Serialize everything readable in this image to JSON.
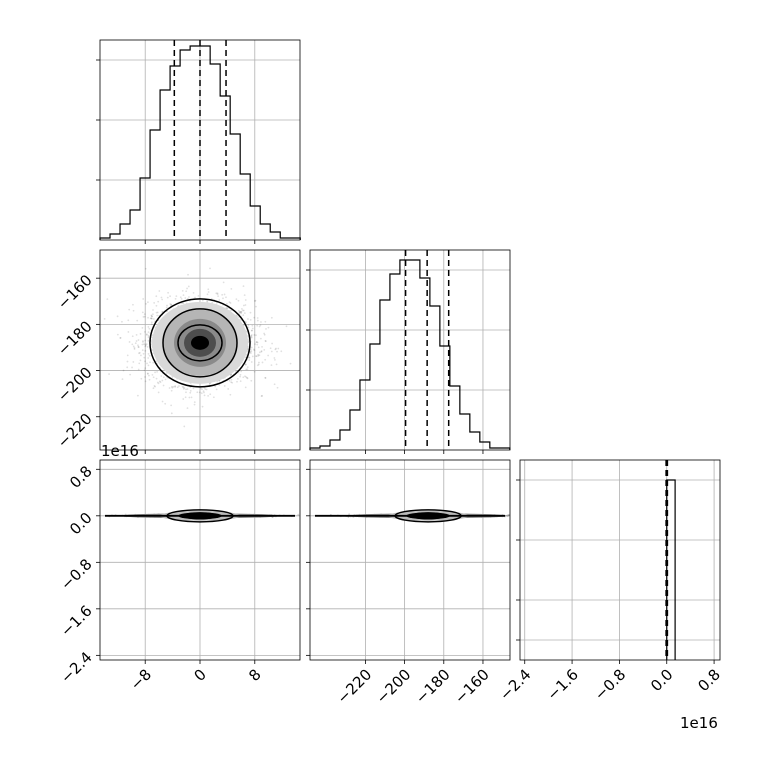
{
  "chart_data": {
    "type": "corner",
    "grid": true,
    "panels": [
      {
        "id": "p00",
        "type": "histogram",
        "x_range": [
          -14.6,
          14.6
        ],
        "bins_x": [
          -14.6,
          -13.138,
          -11.676,
          -10.214,
          -8.752,
          -7.29,
          -5.828,
          -4.366,
          -2.904,
          -1.442,
          0.02,
          1.482,
          2.944,
          4.406,
          5.868,
          7.33,
          8.792,
          10.254,
          11.716,
          13.178,
          14.64
        ],
        "counts": [
          0.01,
          0.03,
          0.08,
          0.15,
          0.31,
          0.55,
          0.75,
          0.87,
          0.95,
          0.97,
          0.97,
          0.88,
          0.72,
          0.53,
          0.33,
          0.17,
          0.08,
          0.04,
          0.01,
          0.01
        ],
        "quantile_lines": [
          -3.75,
          0.0,
          3.8
        ]
      },
      {
        "id": "p11",
        "type": "histogram",
        "x_range": [
          -248.3,
          -146.2
        ],
        "bins_x": [
          -248.3,
          -243.2,
          -238.1,
          -233.0,
          -227.9,
          -222.8,
          -217.7,
          -212.6,
          -207.5,
          -202.4,
          -197.3,
          -192.2,
          -187.1,
          -182.0,
          -176.9,
          -171.8,
          -166.7,
          -161.6,
          -156.5,
          -151.4,
          -146.3
        ],
        "counts": [
          0.01,
          0.02,
          0.05,
          0.1,
          0.2,
          0.35,
          0.53,
          0.75,
          0.88,
          0.95,
          0.95,
          0.86,
          0.72,
          0.52,
          0.32,
          0.18,
          0.09,
          0.04,
          0.01,
          0.01
        ],
        "quantile_lines": [
          -199.5,
          -188.5,
          -177.5
        ]
      },
      {
        "id": "p22",
        "type": "histogram",
        "x_range": [
          -2.48,
          0.9
        ],
        "x_offset_text": "1e16",
        "bins_x": [
          0.0,
          0.04
        ],
        "counts": [
          1.0
        ],
        "quantile_lines": [
          -0.005,
          0.0,
          0.005
        ]
      },
      {
        "id": "p10",
        "type": "contour",
        "x_range": [
          -14.6,
          14.6
        ],
        "y_range": [
          -234.4,
          -147.8
        ],
        "center": [
          0,
          -188
        ],
        "sigma_rx": 7.5,
        "sigma_ry": 16,
        "contour_levels": [
          0.5,
          1.0,
          1.5
        ]
      },
      {
        "id": "p20",
        "type": "contour",
        "x_range": [
          -14.6,
          14.6
        ],
        "y_range": [
          -2.48,
          0.96
        ],
        "y_offset_text": "1e16",
        "center": [
          0,
          0
        ],
        "sigma_rx": 7.5,
        "sigma_ry": 0.06
      },
      {
        "id": "p21",
        "type": "contour",
        "x_range": [
          -248.3,
          -146.2
        ],
        "y_range": [
          -2.48,
          0.96
        ],
        "center": [
          -188,
          0
        ],
        "sigma_rx": 16,
        "sigma_ry": 0.06
      }
    ],
    "tick_labels": {
      "p10_y": [
        "−160",
        "−180",
        "−200",
        "−220"
      ],
      "p10_y_values": [
        -160,
        -180,
        -200,
        -220
      ],
      "p20_y": [
        "0.8",
        "0.0",
        "−0.8",
        "−1.6",
        "−2.4"
      ],
      "p20_y_values": [
        0.8,
        0.0,
        -0.8,
        -1.6,
        -2.4
      ],
      "p20_x": [
        "−8",
        "0",
        "8"
      ],
      "p20_x_values": [
        -8,
        0,
        8
      ],
      "p21_x": [
        "−220",
        "−200",
        "−180",
        "−160"
      ],
      "p21_x_values": [
        -220,
        -200,
        -180,
        -160
      ],
      "p22_x": [
        "−2.4",
        "−1.6",
        "−0.8",
        "0.0",
        "0.8"
      ],
      "p22_x_values": [
        -2.4,
        -1.6,
        -0.8,
        0.0,
        0.8
      ]
    },
    "offset_texts": {
      "y_offset": "1e16",
      "x_offset": "1e16"
    }
  }
}
